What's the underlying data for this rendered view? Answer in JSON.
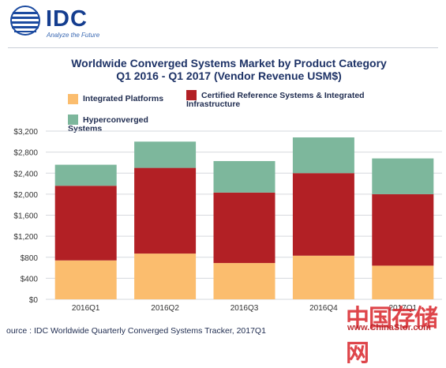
{
  "header": {
    "logo_text": "IDC",
    "logo_tagline": "Analyze the Future"
  },
  "chart_data": {
    "type": "bar",
    "stacked": true,
    "title_line1": "Worldwide Converged Systems Market by Product Category",
    "title_line2": "Q1 2016 - Q1 2017 (Vendor Revenue USM$)",
    "categories": [
      "2016Q1",
      "2016Q2",
      "2016Q3",
      "2016Q4",
      "2017Q1"
    ],
    "series": [
      {
        "name": "Integrated Platforms",
        "color": "#fbbd6e",
        "values": [
          740,
          870,
          690,
          830,
          640
        ]
      },
      {
        "name": "Certified Reference Systems & Integrated Infrastructure",
        "color": "#b22025",
        "values": [
          1420,
          1630,
          1340,
          1570,
          1360
        ]
      },
      {
        "name": "Hyperconverged Systems",
        "color": "#7db79c",
        "values": [
          400,
          500,
          600,
          680,
          680
        ]
      }
    ],
    "ylim": [
      0,
      3200
    ],
    "yticks": [
      0,
      400,
      800,
      1200,
      1600,
      2000,
      2400,
      2800,
      3200
    ],
    "ytick_labels": [
      "$0",
      "$400",
      "$800",
      "$1,200",
      "$1,600",
      "$2,000",
      "$2,400",
      "$2,800",
      "$3,200"
    ],
    "grid": true,
    "legend_position": "top"
  },
  "legend": {
    "items": [
      {
        "line1": "Integrated Platforms",
        "line2": "",
        "color": "#fbbd6e"
      },
      {
        "line1": "Certified Reference Systems & Integrated",
        "line2": "Infrastructure",
        "color": "#b22025"
      },
      {
        "line1": "Hyperconverged",
        "line2": "Systems",
        "color": "#7db79c"
      }
    ]
  },
  "footer": {
    "source": "ource : IDC Worldwide Quarterly Converged Systems Tracker, 2017Q1"
  },
  "watermark": {
    "cn_text": "中国存储网",
    "url": "www.ChinaStor.com"
  }
}
